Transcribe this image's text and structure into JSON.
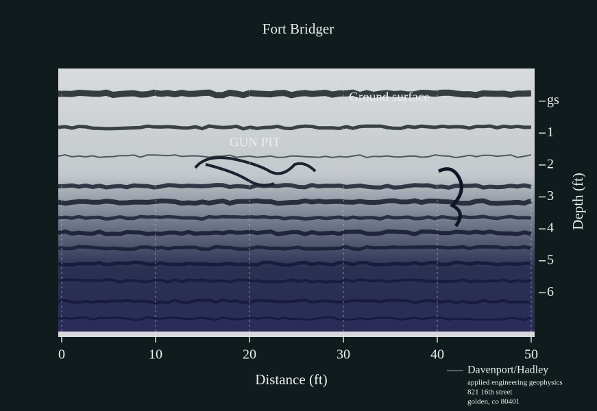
{
  "chart_data": {
    "type": "radargram",
    "title": "Fort Bridger",
    "x_label": "Distance (ft)",
    "y_label": "Depth (ft)",
    "xlim": [
      0,
      50
    ],
    "xticks": [
      0,
      10,
      20,
      30,
      40,
      50
    ],
    "ylim": [
      -1,
      7.3
    ],
    "y_reversed": true,
    "yticks": [
      {
        "value": 0,
        "label": "gs"
      },
      1,
      2,
      3,
      4,
      5,
      6
    ],
    "grid": true,
    "annotations": [
      "Ground surface",
      "GUN PIT"
    ],
    "credit": [
      "Davenport/Hadley",
      "applied engineering geophysics",
      "821 16th street",
      "golden, co 80401"
    ]
  }
}
